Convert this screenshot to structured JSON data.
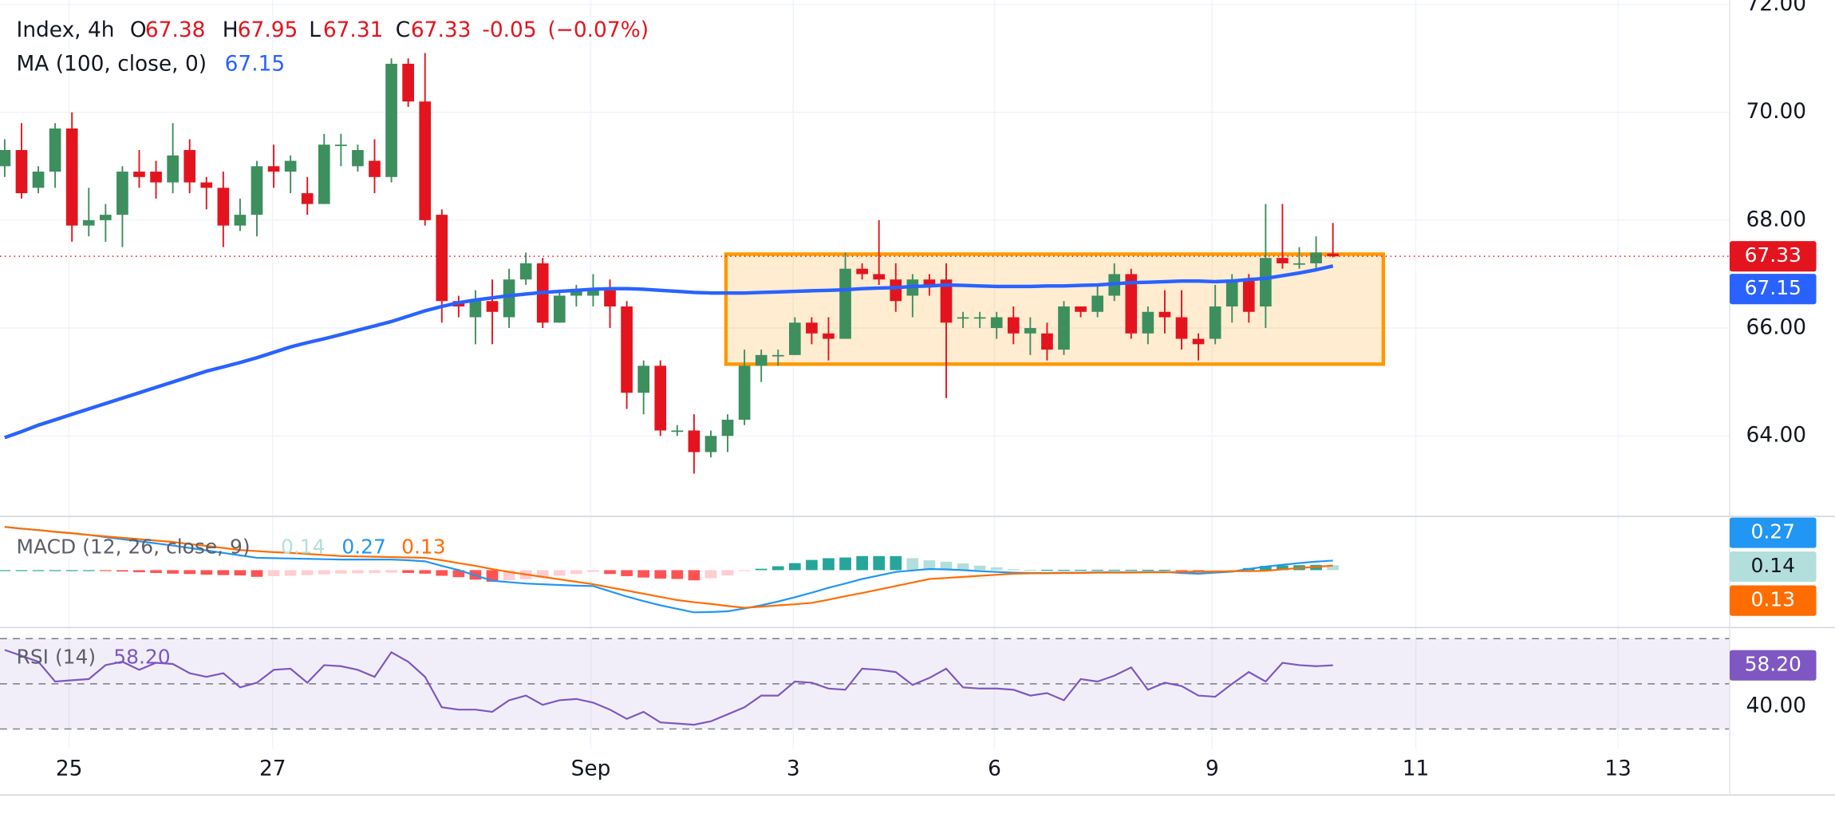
{
  "header": {
    "symbol": "Index, 4h",
    "open_prefix": "O",
    "open": "67.38",
    "high_prefix": "H",
    "high": "67.95",
    "low_prefix": "L",
    "low": "67.31",
    "close_prefix": "C",
    "close": "67.33",
    "change": "-0.05",
    "change_pct": "(−0.07%)"
  },
  "chart_data": [
    {
      "type": "candlestick",
      "up_color": "#3d8f5e",
      "down_color": "#e3141e",
      "open": [
        69.0,
        69.3,
        68.6,
        68.9,
        69.7,
        67.9,
        68.0,
        68.1,
        68.9,
        68.9,
        68.7,
        69.3,
        68.7,
        68.6,
        67.9,
        68.1,
        69.0,
        68.9,
        68.5,
        68.3,
        69.4,
        69.0,
        69.1,
        68.8,
        70.9,
        70.2,
        68.1,
        66.5,
        66.2,
        66.5,
        66.2,
        66.9,
        67.2,
        66.1,
        66.6,
        66.6,
        66.7,
        66.4,
        64.8,
        65.3,
        64.1,
        64.1,
        63.7,
        64.0,
        64.3,
        65.3,
        65.5,
        65.5,
        66.1,
        65.9,
        65.8,
        67.1,
        67.0,
        66.9,
        66.6,
        66.9,
        66.9,
        66.2,
        66.2,
        66.0,
        66.2,
        65.9,
        65.9,
        65.6,
        66.4,
        66.3,
        66.6,
        67.0,
        65.9,
        66.3,
        66.2,
        65.8,
        65.8,
        66.4,
        66.9,
        66.4,
        67.3,
        67.2,
        67.2,
        67.38
      ],
      "high": [
        69.5,
        69.8,
        69.0,
        69.8,
        70.0,
        68.6,
        68.3,
        69.0,
        69.3,
        69.1,
        69.8,
        69.5,
        68.8,
        68.9,
        68.4,
        69.1,
        69.4,
        69.2,
        68.8,
        69.6,
        69.6,
        69.4,
        69.5,
        71.0,
        71.0,
        71.1,
        68.2,
        66.6,
        66.7,
        66.9,
        67.1,
        67.4,
        67.3,
        66.7,
        66.8,
        67.0,
        66.9,
        66.5,
        65.4,
        65.4,
        64.2,
        64.4,
        64.1,
        64.4,
        65.6,
        65.6,
        65.6,
        66.2,
        66.2,
        66.2,
        67.4,
        67.2,
        68.0,
        67.2,
        67.0,
        67.0,
        67.2,
        66.3,
        66.3,
        66.3,
        66.4,
        66.2,
        66.1,
        66.5,
        66.4,
        66.8,
        67.2,
        67.1,
        66.4,
        66.7,
        66.7,
        65.9,
        66.8,
        67.0,
        67.0,
        68.3,
        68.3,
        67.5,
        67.7,
        67.95
      ],
      "low": [
        68.8,
        68.4,
        68.5,
        68.6,
        67.6,
        67.7,
        67.6,
        67.5,
        68.6,
        68.4,
        68.5,
        68.5,
        68.2,
        67.5,
        67.8,
        67.7,
        68.6,
        68.5,
        68.1,
        68.3,
        69.0,
        68.9,
        68.5,
        68.7,
        70.1,
        67.9,
        66.1,
        66.2,
        65.7,
        65.7,
        66.0,
        66.8,
        66.0,
        66.1,
        66.4,
        66.4,
        66.0,
        64.5,
        64.4,
        64.0,
        64.0,
        63.3,
        63.6,
        63.7,
        64.2,
        65.0,
        65.3,
        65.5,
        65.7,
        65.4,
        65.8,
        66.9,
        66.8,
        66.3,
        66.2,
        66.6,
        64.7,
        66.0,
        66.0,
        65.8,
        65.7,
        65.5,
        65.4,
        65.5,
        66.2,
        66.2,
        66.5,
        65.8,
        65.7,
        65.9,
        65.6,
        65.4,
        65.7,
        66.1,
        66.1,
        66.0,
        67.1,
        67.1,
        67.1,
        67.31
      ],
      "close": [
        69.3,
        68.5,
        68.9,
        69.7,
        67.9,
        68.0,
        68.1,
        68.9,
        68.8,
        68.7,
        69.2,
        68.7,
        68.6,
        67.9,
        68.1,
        69.0,
        68.9,
        69.1,
        68.3,
        69.4,
        69.4,
        69.3,
        68.8,
        70.9,
        70.2,
        68.0,
        66.5,
        66.4,
        66.5,
        66.3,
        66.9,
        67.2,
        66.1,
        66.6,
        66.7,
        66.7,
        66.4,
        64.8,
        65.3,
        64.1,
        64.1,
        63.7,
        64.0,
        64.3,
        65.3,
        65.5,
        65.5,
        66.1,
        65.9,
        65.8,
        67.1,
        67.0,
        66.9,
        66.5,
        66.9,
        66.8,
        66.1,
        66.2,
        66.2,
        66.2,
        65.9,
        66.0,
        65.6,
        66.4,
        66.3,
        66.6,
        67.0,
        65.9,
        66.3,
        66.2,
        65.8,
        65.7,
        66.4,
        66.9,
        66.3,
        67.3,
        67.2,
        67.2,
        67.4,
        67.33
      ],
      "last_price_label": "67.33",
      "ma": {
        "name": "MA (100, close, 0)",
        "value_label": "67.15",
        "color": "#2962ff",
        "values": [
          63.97,
          64.08,
          64.2,
          64.3,
          64.4,
          64.5,
          64.6,
          64.7,
          64.8,
          64.9,
          65.0,
          65.1,
          65.2,
          65.28,
          65.36,
          65.45,
          65.55,
          65.65,
          65.73,
          65.8,
          65.88,
          65.96,
          66.04,
          66.12,
          66.22,
          66.32,
          66.4,
          66.47,
          66.52,
          66.56,
          66.6,
          66.63,
          66.66,
          66.68,
          66.7,
          66.72,
          66.73,
          66.73,
          66.72,
          66.7,
          66.68,
          66.66,
          66.65,
          66.65,
          66.65,
          66.66,
          66.67,
          66.68,
          66.69,
          66.7,
          66.71,
          66.73,
          66.74,
          66.75,
          66.77,
          66.78,
          66.8,
          66.79,
          66.78,
          66.77,
          66.77,
          66.77,
          66.78,
          66.78,
          66.79,
          66.8,
          66.82,
          66.84,
          66.85,
          66.86,
          66.87,
          66.87,
          66.86,
          66.87,
          66.9,
          66.92,
          66.97,
          67.02,
          67.08,
          67.15
        ]
      },
      "range_box": {
        "x0": 42.9,
        "x1": 82,
        "y0": 65.33,
        "y1": 67.37,
        "color": "#ff9800"
      },
      "ylim": [
        62.53,
        72.08
      ],
      "yticks": [
        {
          "value": 64,
          "label": "64.00"
        },
        {
          "value": 66,
          "label": "66.00"
        },
        {
          "value": 68,
          "label": "68.00"
        },
        {
          "value": 70,
          "label": "70.00"
        },
        {
          "value": 72,
          "label": "72.00"
        }
      ],
      "xlim": [
        -0.28,
        102.6
      ],
      "xticks": [
        {
          "value": 3.83,
          "label": "25"
        },
        {
          "value": 15.94,
          "label": "27"
        },
        {
          "value": 34.86,
          "label": "Sep"
        },
        {
          "value": 46.9,
          "label": "3"
        },
        {
          "value": 58.87,
          "label": "6"
        },
        {
          "value": 71.82,
          "label": "9"
        },
        {
          "value": 83.93,
          "label": "11"
        },
        {
          "value": 95.96,
          "label": "13"
        }
      ],
      "grid": true
    },
    {
      "type": "macd",
      "title": "MACD (12, 26, close, 9)",
      "ylim": [
        -1.6,
        1.53
      ],
      "histogram": {
        "value_label": "0.14",
        "colors": [
          "#26a69a",
          "#b2dfdb",
          "#ffcdd2",
          "#ff5252"
        ],
        "values": [
          0,
          0,
          0,
          0,
          0,
          0,
          -0.02,
          -0.04,
          -0.06,
          -0.08,
          -0.1,
          -0.11,
          -0.13,
          -0.14,
          -0.15,
          -0.19,
          -0.17,
          -0.16,
          -0.14,
          -0.12,
          -0.1,
          -0.09,
          -0.08,
          -0.07,
          -0.08,
          -0.1,
          -0.16,
          -0.2,
          -0.27,
          -0.33,
          -0.29,
          -0.26,
          -0.21,
          -0.16,
          -0.11,
          -0.05,
          -0.11,
          -0.17,
          -0.21,
          -0.24,
          -0.25,
          -0.29,
          -0.23,
          -0.15,
          -0.02,
          0.04,
          0.11,
          0.2,
          0.29,
          0.34,
          0.36,
          0.4,
          0.4,
          0.4,
          0.34,
          0.28,
          0.24,
          0.19,
          0.13,
          0.08,
          0.03,
          0.01,
          0.01,
          0.01,
          0.01,
          0.01,
          0.01,
          0.01,
          0.01,
          0.01,
          -0.03,
          -0.06,
          -0.03,
          -0.01,
          0.06,
          0.12,
          0.13,
          0.14,
          0.15,
          0.14
        ]
      },
      "series": [
        {
          "color": "#2196f3",
          "value_label": "0.27",
          "values": [
            1.23,
            1.18,
            1.14,
            1.09,
            1.05,
            1.0,
            0.94,
            0.88,
            0.82,
            0.76,
            0.7,
            0.63,
            0.56,
            0.49,
            0.42,
            0.35,
            0.34,
            0.33,
            0.32,
            0.31,
            0.3,
            0.3,
            0.3,
            0.3,
            0.28,
            0.25,
            0.12,
            0.0,
            -0.15,
            -0.3,
            -0.34,
            -0.38,
            -0.4,
            -0.42,
            -0.44,
            -0.45,
            -0.6,
            -0.75,
            -0.88,
            -1.0,
            -1.1,
            -1.2,
            -1.19,
            -1.17,
            -1.09,
            -1.0,
            -0.89,
            -0.77,
            -0.64,
            -0.5,
            -0.38,
            -0.25,
            -0.15,
            -0.05,
            -0.01,
            0.03,
            0.02,
            0.0,
            -0.03,
            -0.05,
            -0.07,
            -0.08,
            -0.08,
            -0.07,
            -0.07,
            -0.06,
            -0.06,
            -0.06,
            -0.05,
            -0.05,
            -0.08,
            -0.1,
            -0.07,
            -0.04,
            0.03,
            0.1,
            0.15,
            0.2,
            0.24,
            0.27
          ]
        },
        {
          "color": "#ff6d00",
          "value_label": "0.13",
          "values": [
            1.23,
            1.18,
            1.14,
            1.09,
            1.05,
            1.0,
            0.96,
            0.92,
            0.88,
            0.84,
            0.8,
            0.74,
            0.69,
            0.63,
            0.57,
            0.54,
            0.51,
            0.49,
            0.46,
            0.43,
            0.4,
            0.39,
            0.38,
            0.37,
            0.36,
            0.35,
            0.28,
            0.2,
            0.12,
            0.03,
            -0.05,
            -0.12,
            -0.19,
            -0.26,
            -0.33,
            -0.4,
            -0.49,
            -0.58,
            -0.67,
            -0.76,
            -0.85,
            -0.91,
            -0.96,
            -1.02,
            -1.07,
            -1.04,
            -1.0,
            -0.97,
            -0.93,
            -0.84,
            -0.74,
            -0.65,
            -0.55,
            -0.45,
            -0.35,
            -0.25,
            -0.22,
            -0.19,
            -0.16,
            -0.13,
            -0.1,
            -0.09,
            -0.09,
            -0.08,
            -0.08,
            -0.07,
            -0.07,
            -0.07,
            -0.06,
            -0.06,
            -0.05,
            -0.04,
            -0.04,
            -0.03,
            -0.03,
            -0.02,
            0.02,
            0.06,
            0.09,
            0.13
          ]
        }
      ]
    },
    {
      "type": "line",
      "title": "RSI (14)",
      "ylim": [
        21,
        74.4
      ],
      "yticks": [
        {
          "value": 40,
          "label": "40.00"
        }
      ],
      "levels": [
        30,
        50,
        70
      ],
      "band_color": "#7e57c2",
      "series": [
        {
          "color": "#7e57c2",
          "value_label": "58.20",
          "values": [
            65.0,
            62.4,
            59.8,
            51.0,
            51.6,
            52.1,
            58.3,
            59.8,
            56.2,
            59.3,
            58.8,
            54.7,
            53.1,
            54.7,
            48.4,
            50.5,
            56.2,
            56.7,
            50.5,
            58.3,
            57.8,
            56.2,
            53.1,
            64.0,
            59.8,
            53.1,
            39.6,
            38.6,
            38.6,
            37.6,
            42.7,
            44.8,
            40.7,
            42.7,
            43.3,
            41.7,
            38.6,
            34.5,
            37.6,
            32.9,
            32.4,
            31.9,
            33.4,
            36.5,
            39.6,
            44.8,
            44.8,
            51.0,
            50.5,
            47.9,
            47.4,
            56.7,
            56.2,
            55.2,
            49.5,
            52.6,
            56.7,
            48.4,
            47.9,
            47.9,
            47.4,
            44.8,
            45.9,
            42.7,
            52.1,
            51.0,
            53.6,
            57.3,
            47.4,
            50.5,
            49.0,
            44.8,
            44.3,
            50.0,
            55.2,
            51.0,
            59.3,
            58.3,
            57.8,
            58.2
          ]
        }
      ]
    }
  ]
}
